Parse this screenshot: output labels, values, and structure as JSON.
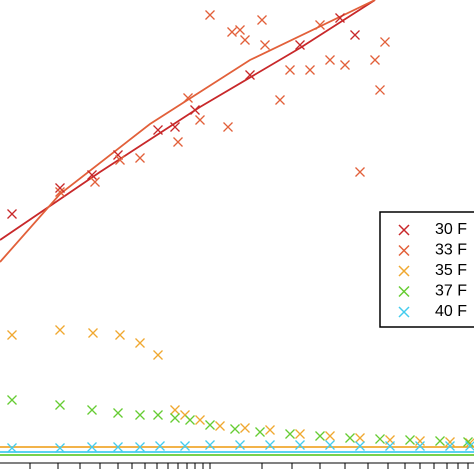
{
  "chart_data": {
    "type": "scatter",
    "xlim": [
      0,
      474
    ],
    "ylim": [
      0,
      474
    ],
    "xticks": [
      30,
      58,
      80,
      100,
      118,
      132,
      145,
      157,
      168,
      178,
      187,
      195,
      203,
      210,
      262,
      292,
      320,
      345,
      368,
      388,
      405,
      420,
      434,
      447,
      458,
      468
    ],
    "legend": "right",
    "series": [
      {
        "name": "30 F",
        "color": "#c8282a",
        "x": [
          12,
          60,
          92,
          118,
          158,
          175,
          195,
          250,
          300,
          340,
          355
        ],
        "y": [
          260,
          286,
          299,
          319,
          344,
          347,
          364,
          399,
          429,
          456,
          439
        ]
      },
      {
        "name": "33 F",
        "color": "#e2603a",
        "x": [
          210,
          262,
          232,
          245,
          188,
          178,
          140,
          120,
          95,
          60,
          200,
          228,
          280,
          310,
          330,
          345,
          360,
          380,
          385,
          375,
          265,
          290,
          320,
          240
        ],
        "y": [
          459,
          454,
          442,
          434,
          376,
          332,
          316,
          314,
          292,
          282,
          354,
          347,
          374,
          404,
          414,
          409,
          302,
          384,
          432,
          414,
          429,
          404,
          449,
          444
        ]
      },
      {
        "name": "35 F",
        "color": "#f0a830",
        "x": [
          12,
          60,
          93,
          120,
          140,
          158,
          175,
          185,
          200,
          220,
          245,
          270,
          300,
          330,
          360,
          390,
          420,
          450,
          470
        ],
        "y": [
          139,
          144,
          141,
          139,
          131,
          119,
          64,
          59,
          54,
          48,
          46,
          44,
          40,
          38,
          36,
          34,
          33,
          32,
          31
        ]
      },
      {
        "name": "37 F",
        "color": "#66cc33",
        "x": [
          12,
          60,
          92,
          118,
          140,
          158,
          175,
          190,
          210,
          235,
          260,
          290,
          320,
          350,
          380,
          410,
          440,
          468
        ],
        "y": [
          74,
          69,
          64,
          61,
          59,
          59,
          56,
          54,
          49,
          45,
          42,
          40,
          38,
          36,
          35,
          34,
          33,
          32
        ]
      },
      {
        "name": "40 F",
        "color": "#44ccee",
        "x": [
          12,
          60,
          92,
          118,
          140,
          160,
          185,
          210,
          240,
          270,
          300,
          330,
          360,
          390,
          420,
          450,
          470
        ],
        "y": [
          26,
          26,
          27,
          27,
          27,
          28,
          28,
          29,
          29,
          29,
          29,
          29,
          28,
          28,
          28,
          28,
          28
        ]
      }
    ],
    "fits": [
      {
        "color": "#c8282a",
        "x": [
          0,
          100,
          200,
          300,
          375
        ],
        "y": [
          234,
          302,
          367,
          426,
          474
        ]
      },
      {
        "color": "#e2603a",
        "x": [
          0,
          60,
          150,
          250,
          375
        ],
        "y": [
          212,
          280,
          350,
          414,
          474
        ]
      },
      {
        "color": "#f0a830",
        "x": [
          0,
          474
        ],
        "y": [
          27,
          27
        ]
      },
      {
        "color": "#44ccee",
        "x": [
          0,
          474
        ],
        "y": [
          22,
          22
        ]
      },
      {
        "color": "#66cc33",
        "x": [
          0,
          474
        ],
        "y": [
          19,
          19
        ]
      }
    ]
  }
}
